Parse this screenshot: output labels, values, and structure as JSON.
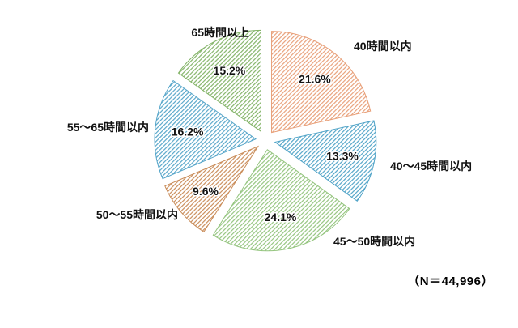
{
  "chart_data": {
    "type": "pie",
    "title": "",
    "categories": [
      "40時間以内",
      "40～45時間以内",
      "45～50時間以内",
      "50～55時間以内",
      "55～65時間以内",
      "65時間以上"
    ],
    "values": [
      21.6,
      13.3,
      24.1,
      9.6,
      16.2,
      15.2
    ],
    "value_labels": [
      "21.6%",
      "13.3%",
      "24.1%",
      "9.6%",
      "16.2%",
      "15.2%"
    ],
    "colors": [
      "#E89F78",
      "#4FA3C7",
      "#93C47D",
      "#C98B57",
      "#55A5C9",
      "#82B366"
    ],
    "fill_style": "diagonal-hatch",
    "start_angle_deg": 0,
    "direction": "clockwise",
    "exploded": true,
    "legend_position": "none",
    "annotation": "（N＝44,996）",
    "background": "#ffffff"
  }
}
